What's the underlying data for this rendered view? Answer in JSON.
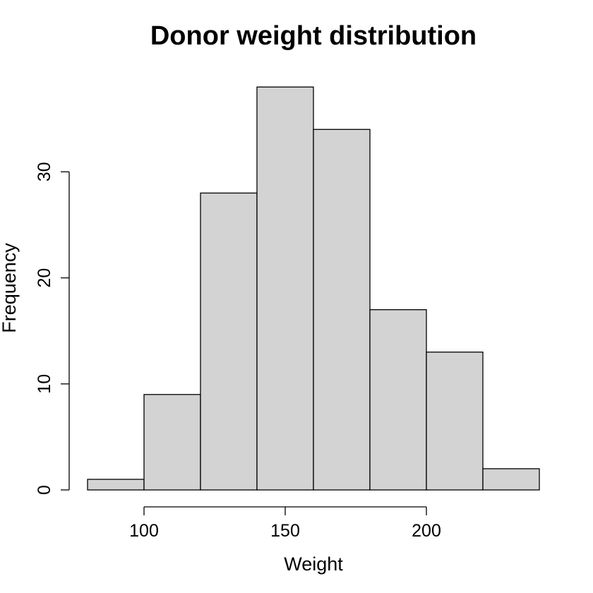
{
  "chart_data": {
    "type": "bar",
    "title": "Donor weight distribution",
    "xlabel": "Weight",
    "ylabel": "Frequency",
    "bins": [
      {
        "start": 80,
        "end": 100,
        "count": 1
      },
      {
        "start": 100,
        "end": 120,
        "count": 9
      },
      {
        "start": 120,
        "end": 140,
        "count": 28
      },
      {
        "start": 140,
        "end": 160,
        "count": 38
      },
      {
        "start": 160,
        "end": 180,
        "count": 34
      },
      {
        "start": 180,
        "end": 200,
        "count": 17
      },
      {
        "start": 200,
        "end": 220,
        "count": 13
      },
      {
        "start": 220,
        "end": 240,
        "count": 2
      }
    ],
    "xticks": [
      100,
      150,
      200
    ],
    "xtick_labels": [
      "100",
      "150",
      "200"
    ],
    "yticks": [
      0,
      10,
      20,
      30
    ],
    "ytick_labels": [
      "0",
      "10",
      "20",
      "30"
    ],
    "xlim": [
      80,
      240
    ],
    "ylim": [
      0,
      38
    ],
    "bar_fill": "#d3d3d3",
    "bar_stroke": "#000000",
    "grid": false
  }
}
